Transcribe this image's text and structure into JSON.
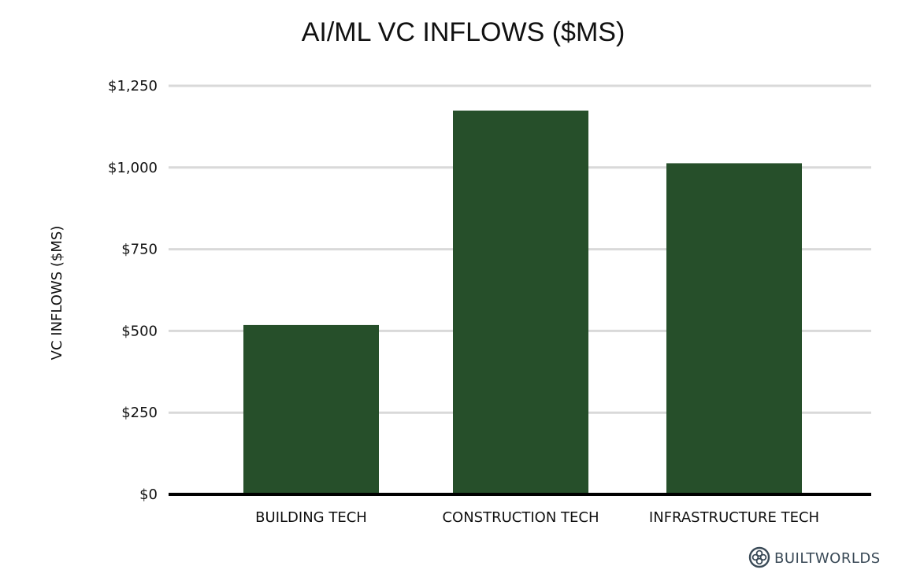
{
  "chart_data": {
    "type": "bar",
    "title": "AI/ML VC INFLOWS ($MS)",
    "ylabel": "VC INFLOWS ($MS)",
    "xlabel": "",
    "categories": [
      "BUILDING TECH",
      "CONSTRUCTION TECH",
      "INFRASTRUCTURE TECH"
    ],
    "values": [
      518,
      1174,
      1013
    ],
    "ylim": [
      0,
      1250
    ],
    "yticks": [
      0,
      250,
      500,
      750,
      1000,
      1250
    ],
    "ytick_labels": [
      "$0",
      "$250",
      "$500",
      "$750",
      "$1,000",
      "$1,250"
    ],
    "grid": true,
    "legend": "none",
    "bar_color": "#264f2a"
  },
  "branding": {
    "logo_text": "BUILTWORLDS",
    "logo_color": "#3a4a57"
  }
}
